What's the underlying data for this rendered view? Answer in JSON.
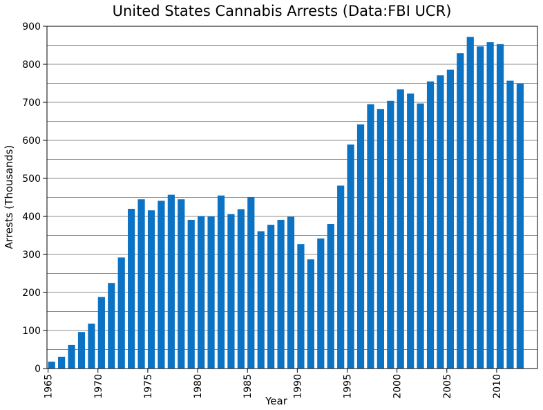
{
  "chart_data": {
    "type": "bar",
    "title": "United States Cannabis Arrests (Data:FBI UCR)",
    "xlabel": "Year",
    "ylabel": "Arrests (Thousands)",
    "ylim": [
      0,
      900
    ],
    "yticks": [
      0,
      100,
      200,
      300,
      400,
      500,
      600,
      700,
      800,
      900
    ],
    "xticks": [
      1965,
      1970,
      1975,
      1980,
      1985,
      1990,
      1995,
      2000,
      2005,
      2010
    ],
    "grid": "horizontal",
    "bar_color": "#0b72c4",
    "series": [
      {
        "x": [
          1965,
          1966,
          1967,
          1968,
          1969,
          1970,
          1971,
          1972,
          1973,
          1974,
          1975,
          1976,
          1977,
          1978,
          1979,
          1980,
          1981,
          1982,
          1983,
          1984,
          1985,
          1986,
          1987,
          1988,
          1989,
          1990,
          1991,
          1992,
          1993,
          1994,
          1995,
          1996,
          1997,
          1998,
          1999,
          2000,
          2001,
          2002,
          2003,
          2004,
          2005,
          2006,
          2007,
          2008,
          2009,
          2010,
          2011,
          2012
        ],
        "values": [
          18,
          31,
          62,
          96,
          118,
          188,
          225,
          292,
          420,
          445,
          416,
          441,
          457,
          445,
          391,
          401,
          400,
          455,
          406,
          419,
          451,
          361,
          378,
          391,
          399,
          327,
          287,
          342,
          380,
          481,
          589,
          642,
          695,
          682,
          704,
          734,
          723,
          697,
          755,
          771,
          786,
          829,
          872,
          847,
          858,
          853,
          757,
          749
        ]
      }
    ]
  }
}
